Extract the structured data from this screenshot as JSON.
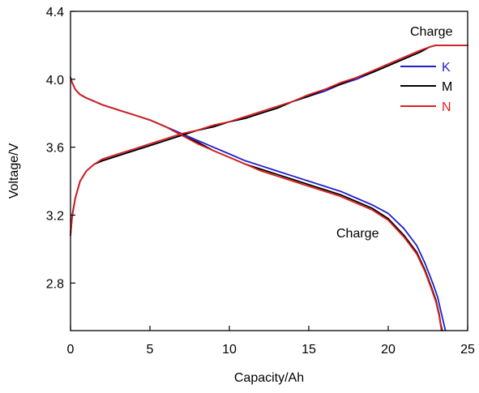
{
  "chart_data": {
    "type": "line",
    "title": "",
    "xlabel": "Capacity/Ah",
    "ylabel": "Voltage/V",
    "xlim": [
      0,
      25
    ],
    "ylim": [
      2.52,
      4.4
    ],
    "xticks": [
      0,
      5,
      10,
      15,
      20,
      25
    ],
    "xtick_labels": [
      "0",
      "5",
      "10",
      "15",
      "20",
      "25"
    ],
    "yticks": [
      2.8,
      3.2,
      3.6,
      4.0,
      4.4
    ],
    "ytick_labels": [
      "2.8",
      "3.2",
      "3.6",
      "4.0",
      "4.4"
    ],
    "grid": false,
    "legend": {
      "position": "top-right"
    },
    "annotations": [
      {
        "text": "Charge",
        "x": 22.9,
        "y": 4.27
      },
      {
        "text": "Charge",
        "x": 16.8,
        "y": 3.06
      }
    ],
    "series": [
      {
        "name": "K",
        "color": "#1f1fcc",
        "curves": [
          {
            "x": [
              0,
              0.1,
              0.3,
              0.6,
              1.0,
              1.5,
              2.0,
              3.0,
              4.0,
              5.0,
              6.0,
              7.0,
              8.0,
              9.0,
              10.0,
              11.0,
              12.0,
              13.0,
              14.0,
              15.0,
              16.0,
              17.0,
              18.0,
              19.0,
              20.0,
              21.0,
              21.8,
              22.3,
              22.8,
              23.1,
              23.3,
              23.5,
              23.6
            ],
            "y": [
              4.01,
              3.98,
              3.94,
              3.91,
              3.89,
              3.87,
              3.85,
              3.82,
              3.79,
              3.76,
              3.72,
              3.68,
              3.64,
              3.6,
              3.56,
              3.52,
              3.49,
              3.46,
              3.43,
              3.4,
              3.37,
              3.34,
              3.3,
              3.26,
              3.21,
              3.12,
              3.02,
              2.92,
              2.8,
              2.72,
              2.64,
              2.56,
              2.52
            ]
          },
          {
            "x": [
              0,
              0.1,
              0.3,
              0.6,
              1.0,
              1.5,
              2.0,
              3.0,
              4.0,
              5.0,
              6.0,
              7.0,
              8.0,
              9.0,
              10.0,
              11.0,
              12.0,
              13.0,
              14.0,
              15.0,
              16.0,
              17.0,
              18.0,
              19.0,
              20.0,
              21.0,
              22.0,
              22.6,
              23.0,
              25.0
            ],
            "y": [
              3.1,
              3.2,
              3.3,
              3.4,
              3.46,
              3.5,
              3.52,
              3.55,
              3.58,
              3.61,
              3.64,
              3.67,
              3.7,
              3.72,
              3.75,
              3.77,
              3.8,
              3.83,
              3.87,
              3.9,
              3.93,
              3.97,
              4.0,
              4.04,
              4.08,
              4.12,
              4.16,
              4.19,
              4.2,
              4.2
            ]
          }
        ]
      },
      {
        "name": "M",
        "color": "#000000",
        "curves": [
          {
            "x": [
              0,
              0.1,
              0.3,
              0.6,
              1.0,
              1.5,
              2.0,
              3.0,
              4.0,
              5.0,
              6.0,
              7.0,
              8.0,
              9.0,
              10.0,
              11.0,
              12.0,
              13.0,
              14.0,
              15.0,
              16.0,
              17.0,
              18.0,
              19.0,
              20.0,
              21.0,
              21.8,
              22.3,
              22.7,
              23.0,
              23.2,
              23.3,
              23.4
            ],
            "y": [
              4.01,
              3.98,
              3.94,
              3.91,
              3.89,
              3.87,
              3.85,
              3.82,
              3.79,
              3.76,
              3.72,
              3.67,
              3.63,
              3.58,
              3.54,
              3.5,
              3.47,
              3.44,
              3.41,
              3.38,
              3.35,
              3.32,
              3.28,
              3.24,
              3.18,
              3.08,
              2.98,
              2.88,
              2.78,
              2.7,
              2.62,
              2.56,
              2.52
            ]
          },
          {
            "x": [
              0,
              0.1,
              0.3,
              0.6,
              1.0,
              1.5,
              2.0,
              3.0,
              4.0,
              5.0,
              6.0,
              7.0,
              8.0,
              9.0,
              10.0,
              11.0,
              12.0,
              13.0,
              14.0,
              15.0,
              16.0,
              17.0,
              18.0,
              19.0,
              20.0,
              21.0,
              22.0,
              22.6,
              23.0,
              25.0
            ],
            "y": [
              3.08,
              3.19,
              3.3,
              3.4,
              3.46,
              3.5,
              3.52,
              3.55,
              3.58,
              3.61,
              3.64,
              3.67,
              3.7,
              3.72,
              3.75,
              3.77,
              3.8,
              3.83,
              3.87,
              3.9,
              3.94,
              3.97,
              4.01,
              4.04,
              4.08,
              4.12,
              4.16,
              4.19,
              4.2,
              4.2
            ]
          }
        ]
      },
      {
        "name": "N",
        "color": "#dd2020",
        "curves": [
          {
            "x": [
              0,
              0.1,
              0.3,
              0.6,
              1.0,
              1.5,
              2.0,
              3.0,
              4.0,
              5.0,
              6.0,
              7.0,
              8.0,
              9.0,
              10.0,
              11.0,
              12.0,
              13.0,
              14.0,
              15.0,
              16.0,
              17.0,
              18.0,
              19.0,
              20.0,
              21.0,
              21.8,
              22.3,
              22.7,
              23.0,
              23.2,
              23.3,
              23.35
            ],
            "y": [
              4.01,
              3.98,
              3.94,
              3.91,
              3.89,
              3.87,
              3.85,
              3.82,
              3.79,
              3.76,
              3.72,
              3.67,
              3.62,
              3.58,
              3.54,
              3.5,
              3.46,
              3.43,
              3.4,
              3.37,
              3.34,
              3.31,
              3.27,
              3.23,
              3.17,
              3.07,
              2.97,
              2.87,
              2.77,
              2.69,
              2.61,
              2.55,
              2.52
            ]
          },
          {
            "x": [
              0,
              0.1,
              0.3,
              0.6,
              1.0,
              1.5,
              2.0,
              3.0,
              4.0,
              5.0,
              6.0,
              7.0,
              8.0,
              9.0,
              10.0,
              11.0,
              12.0,
              13.0,
              14.0,
              15.0,
              16.0,
              17.0,
              18.0,
              19.0,
              20.0,
              21.0,
              22.0,
              22.6,
              23.0,
              25.0
            ],
            "y": [
              3.08,
              3.19,
              3.3,
              3.4,
              3.46,
              3.5,
              3.53,
              3.56,
              3.59,
              3.62,
              3.65,
              3.68,
              3.7,
              3.73,
              3.75,
              3.78,
              3.81,
              3.84,
              3.87,
              3.91,
              3.94,
              3.98,
              4.01,
              4.05,
              4.09,
              4.13,
              4.17,
              4.19,
              4.2,
              4.2
            ]
          }
        ]
      }
    ]
  }
}
